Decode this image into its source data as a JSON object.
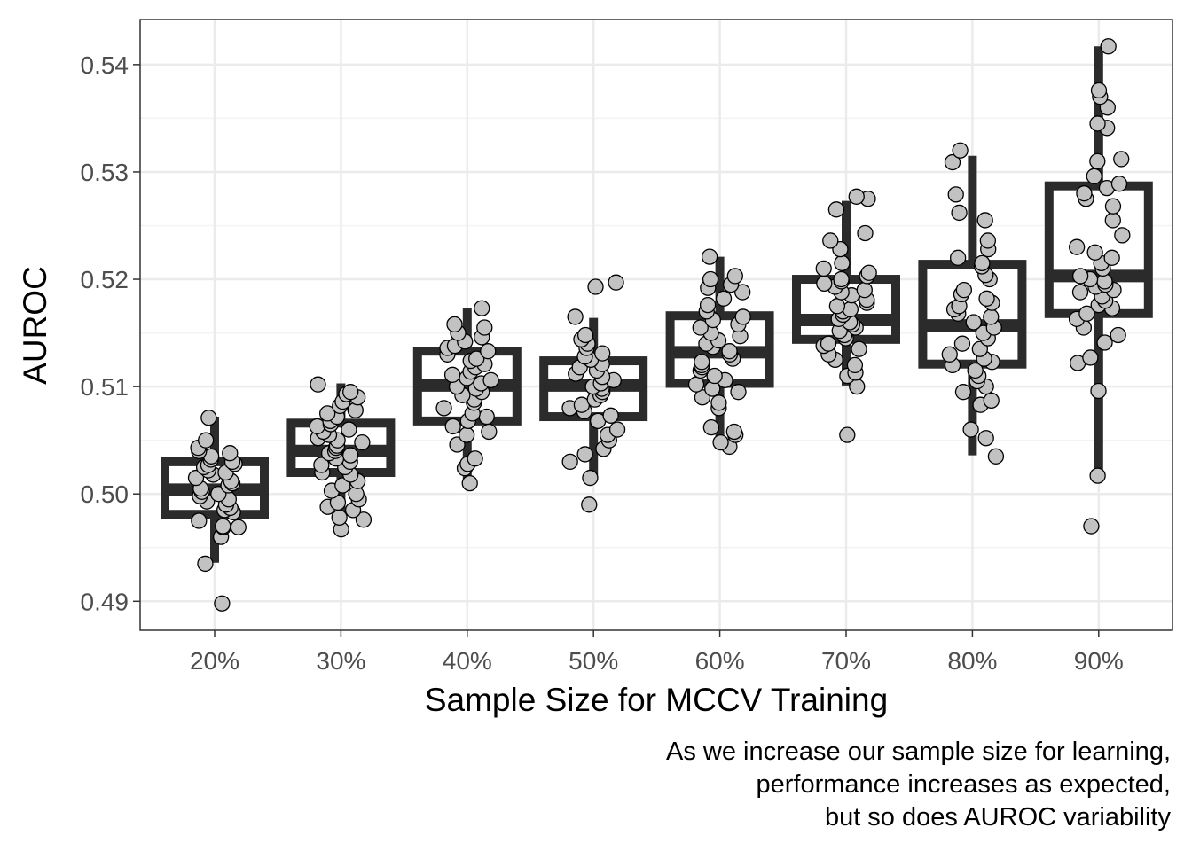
{
  "chart_data": {
    "type": "box",
    "title": "",
    "xlabel": "Sample Size for MCCV Training",
    "ylabel": "AUROC",
    "caption": [
      "As we increase our sample size for learning,",
      "performance increases as expected,",
      "but so does AUROC variability"
    ],
    "categories": [
      "20%",
      "30%",
      "40%",
      "50%",
      "60%",
      "70%",
      "80%",
      "90%"
    ],
    "ylim": [
      0.4873,
      0.5442
    ],
    "yticks": [
      0.49,
      0.5,
      0.51,
      0.52,
      0.53,
      0.54
    ],
    "ytick_labels": [
      "0.49",
      "0.50",
      "0.51",
      "0.52",
      "0.53",
      "0.54"
    ],
    "grid": true,
    "boxes": [
      {
        "category": "20%",
        "whisker_low": 0.4936,
        "q1": 0.4981,
        "median": 0.5004,
        "q3": 0.503,
        "whisker_high": 0.5072
      },
      {
        "category": "30%",
        "whisker_low": 0.4976,
        "q1": 0.502,
        "median": 0.504,
        "q3": 0.5066,
        "whisker_high": 0.5103
      },
      {
        "category": "40%",
        "whisker_low": 0.5012,
        "q1": 0.5068,
        "median": 0.5101,
        "q3": 0.5133,
        "whisker_high": 0.5173
      },
      {
        "category": "50%",
        "whisker_low": 0.5017,
        "q1": 0.5072,
        "median": 0.5101,
        "q3": 0.5124,
        "whisker_high": 0.5164
      },
      {
        "category": "60%",
        "whisker_low": 0.5045,
        "q1": 0.5103,
        "median": 0.5132,
        "q3": 0.5166,
        "whisker_high": 0.5221
      },
      {
        "category": "70%",
        "whisker_low": 0.5101,
        "q1": 0.5144,
        "median": 0.5162,
        "q3": 0.52,
        "whisker_high": 0.5273
      },
      {
        "category": "80%",
        "whisker_low": 0.5036,
        "q1": 0.5121,
        "median": 0.5157,
        "q3": 0.5214,
        "whisker_high": 0.5315
      },
      {
        "category": "90%",
        "whisker_low": 0.5018,
        "q1": 0.5168,
        "median": 0.5203,
        "q3": 0.5287,
        "whisker_high": 0.5417
      }
    ],
    "points": [
      [
        0.4898,
        0.4935,
        0.496,
        0.4969,
        0.4969,
        0.497,
        0.4975,
        0.4983,
        0.4985,
        0.4987,
        0.499,
        0.4993,
        0.4995,
        0.4998,
        0.5,
        0.5002,
        0.5005,
        0.5008,
        0.501,
        0.5012,
        0.5015,
        0.5018,
        0.502,
        0.5022,
        0.5025,
        0.5027,
        0.5028,
        0.503,
        0.5032,
        0.5035,
        0.5038,
        0.504,
        0.5043,
        0.505,
        0.5071
      ],
      [
        0.4967,
        0.4976,
        0.4978,
        0.4985,
        0.4988,
        0.4992,
        0.4995,
        0.5,
        0.5003,
        0.5008,
        0.5012,
        0.5018,
        0.502,
        0.5025,
        0.5027,
        0.503,
        0.5033,
        0.5036,
        0.5038,
        0.504,
        0.5043,
        0.5045,
        0.5048,
        0.505,
        0.5052,
        0.5055,
        0.5058,
        0.506,
        0.5063,
        0.5065,
        0.5068,
        0.5072,
        0.5075,
        0.5078,
        0.5082,
        0.5086,
        0.509,
        0.5093,
        0.5095,
        0.5102
      ],
      [
        0.501,
        0.5024,
        0.5028,
        0.5033,
        0.5046,
        0.5055,
        0.5058,
        0.5063,
        0.5068,
        0.5072,
        0.5075,
        0.508,
        0.5085,
        0.5088,
        0.5092,
        0.5095,
        0.5098,
        0.51,
        0.5103,
        0.5106,
        0.5108,
        0.5111,
        0.5114,
        0.5118,
        0.5121,
        0.5124,
        0.5126,
        0.513,
        0.5133,
        0.5136,
        0.5138,
        0.5142,
        0.5146,
        0.515,
        0.5155,
        0.5158,
        0.5173
      ],
      [
        0.499,
        0.5015,
        0.503,
        0.5037,
        0.5042,
        0.505,
        0.5055,
        0.506,
        0.5068,
        0.5073,
        0.5077,
        0.508,
        0.5083,
        0.5088,
        0.5092,
        0.5095,
        0.5098,
        0.51,
        0.5103,
        0.5106,
        0.5109,
        0.5112,
        0.5115,
        0.5118,
        0.5121,
        0.5125,
        0.5128,
        0.5131,
        0.5136,
        0.514,
        0.5144,
        0.5148,
        0.5165,
        0.5193,
        0.5197
      ],
      [
        0.5044,
        0.5048,
        0.5055,
        0.5058,
        0.5062,
        0.508,
        0.5085,
        0.509,
        0.5095,
        0.5098,
        0.5102,
        0.5106,
        0.511,
        0.5115,
        0.5118,
        0.512,
        0.5123,
        0.5126,
        0.513,
        0.5133,
        0.5137,
        0.514,
        0.5143,
        0.5147,
        0.515,
        0.5155,
        0.5158,
        0.5162,
        0.5165,
        0.517,
        0.5176,
        0.5182,
        0.5188,
        0.5192,
        0.5195,
        0.52,
        0.5203,
        0.5221
      ],
      [
        0.5055,
        0.51,
        0.511,
        0.5113,
        0.512,
        0.5125,
        0.513,
        0.5135,
        0.5138,
        0.514,
        0.5145,
        0.5148,
        0.5152,
        0.5155,
        0.5158,
        0.516,
        0.5163,
        0.5167,
        0.517,
        0.5172,
        0.5175,
        0.5178,
        0.5181,
        0.5185,
        0.5188,
        0.519,
        0.5193,
        0.5196,
        0.5198,
        0.52,
        0.5203,
        0.5206,
        0.521,
        0.5215,
        0.5228,
        0.5236,
        0.5243,
        0.5265,
        0.5275,
        0.5277
      ],
      [
        0.5035,
        0.5052,
        0.506,
        0.5083,
        0.5087,
        0.5095,
        0.51,
        0.5105,
        0.511,
        0.5115,
        0.512,
        0.5123,
        0.5126,
        0.513,
        0.5135,
        0.514,
        0.5145,
        0.515,
        0.5155,
        0.516,
        0.5165,
        0.5168,
        0.5172,
        0.5175,
        0.5178,
        0.5182,
        0.5186,
        0.519,
        0.52,
        0.5204,
        0.5212,
        0.5215,
        0.522,
        0.5228,
        0.5236,
        0.5255,
        0.5262,
        0.5279,
        0.5309,
        0.532
      ],
      [
        0.497,
        0.5017,
        0.5096,
        0.5122,
        0.5127,
        0.5141,
        0.5148,
        0.5155,
        0.5163,
        0.5168,
        0.5173,
        0.5176,
        0.518,
        0.5184,
        0.5188,
        0.519,
        0.5193,
        0.5195,
        0.5198,
        0.52,
        0.5203,
        0.521,
        0.5215,
        0.522,
        0.5225,
        0.523,
        0.5241,
        0.5255,
        0.5268,
        0.5275,
        0.528,
        0.5285,
        0.5289,
        0.5296,
        0.531,
        0.5312,
        0.5341,
        0.5345,
        0.536,
        0.537,
        0.5376,
        0.5417
      ]
    ],
    "colors": {
      "panel_border": "#333333",
      "grid_major": "#ebebeb",
      "grid_minor": "#f3f3f3",
      "box": "#2b2b2b",
      "point_fill": "#c2c2c2",
      "point_stroke": "#000000",
      "tick_text": "#4d4d4d",
      "title_text": "#000000"
    }
  }
}
